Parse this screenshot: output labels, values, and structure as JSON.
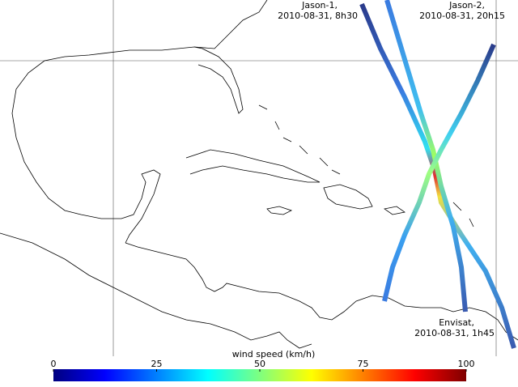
{
  "labels": [
    {
      "name": "Jason-1,",
      "date": "2010-08-31, 8h30"
    },
    {
      "name": "Jason-2,",
      "date": "2010-08-31, 20h15"
    },
    {
      "name": "Envisat,",
      "date": "2010-08-31, 1h45"
    }
  ],
  "colorbar": {
    "title": "wind speed (km/h)",
    "lim": [
      0,
      100
    ],
    "ticks": [
      0,
      25,
      50,
      75,
      100
    ]
  }
}
